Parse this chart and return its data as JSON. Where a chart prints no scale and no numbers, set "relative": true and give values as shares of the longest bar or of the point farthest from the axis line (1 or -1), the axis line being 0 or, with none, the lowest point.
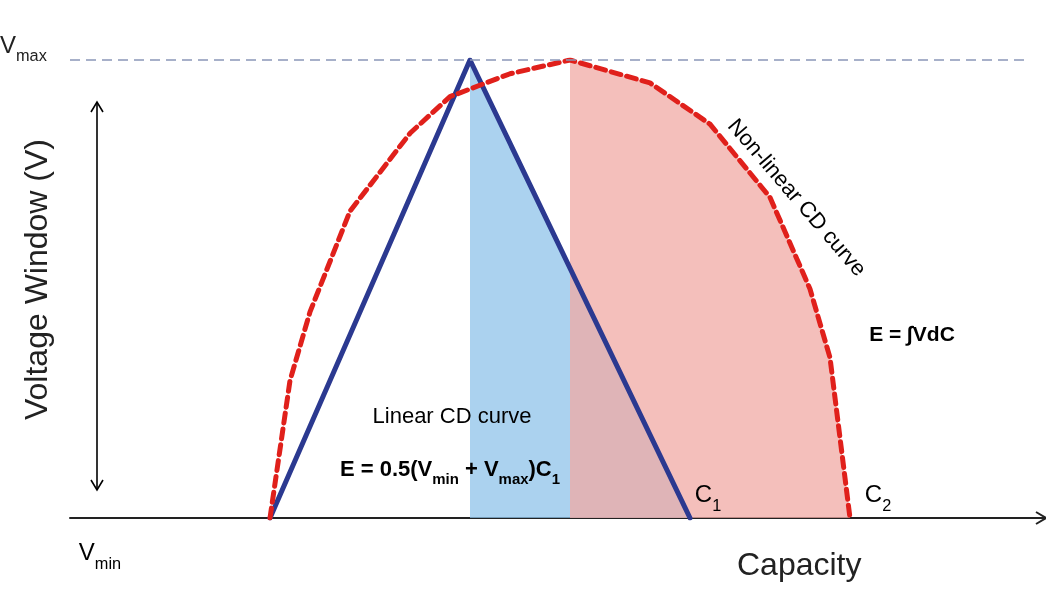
{
  "chart_data": {
    "type": "line",
    "relative": true,
    "xlabel": "Capacity",
    "ylabel": "Voltage Window (V)",
    "marker": "none",
    "categories": [
      null,
      null,
      null,
      null,
      null,
      null,
      null,
      null,
      null,
      null,
      null,
      null,
      null,
      null,
      null,
      null,
      null,
      null,
      null,
      null,
      null,
      null,
      null,
      null,
      null,
      null,
      null,
      null,
      null,
      null,
      null,
      null,
      null,
      null,
      null,
      null,
      null,
      null,
      null,
      null,
      null,
      null,
      null,
      null,
      null,
      null,
      null,
      null,
      null
    ],
    "series": [
      {
        "type": "area",
        "color": "#8fc3ea",
        "values": [
          null,
          null,
          null,
          null,
          null,
          null,
          null,
          null,
          null,
          null,
          null,
          null,
          null,
          null,
          null,
          null,
          null,
          null,
          null,
          null,
          1,
          null,
          null,
          null,
          null,
          null,
          null,
          null,
          null,
          null,
          null,
          0,
          null,
          null,
          null,
          null,
          null,
          null,
          null,
          null,
          null,
          null,
          null,
          null,
          null,
          null,
          null,
          null,
          null
        ]
      },
      {
        "type": "area",
        "color": "#f0aaa4",
        "values": [
          null,
          null,
          null,
          null,
          null,
          null,
          null,
          null,
          null,
          null,
          null,
          null,
          null,
          null,
          null,
          null,
          null,
          null,
          null,
          null,
          null,
          null,
          null,
          null,
          null,
          1,
          null,
          null,
          null,
          0.95,
          null,
          null,
          0.86,
          null,
          null,
          0.7,
          null,
          0.5,
          0.35,
          0,
          null,
          null,
          null,
          null,
          null,
          null,
          null,
          null,
          null
        ]
      },
      {
        "color": "#2b3990",
        "line_style": "solid",
        "values": [
          null,
          null,
          null,
          null,
          null,
          null,
          null,
          null,
          null,
          null,
          0,
          null,
          null,
          null,
          null,
          null,
          null,
          null,
          null,
          null,
          1,
          null,
          null,
          null,
          null,
          null,
          null,
          null,
          null,
          null,
          null,
          0,
          null,
          null,
          null,
          null,
          null,
          null,
          null,
          null,
          null,
          null,
          null,
          null,
          null,
          null,
          null,
          null,
          null
        ]
      },
      {
        "color": "#e0201b",
        "line_style": "dashed",
        "values": [
          null,
          null,
          null,
          null,
          null,
          null,
          null,
          null,
          null,
          null,
          0,
          0.3,
          0.45,
          null,
          0.67,
          null,
          null,
          0.84,
          null,
          0.92,
          null,
          null,
          0.97,
          null,
          null,
          1,
          null,
          null,
          null,
          0.95,
          null,
          null,
          0.86,
          null,
          null,
          0.7,
          null,
          0.5,
          0.35,
          0,
          null,
          null,
          null,
          null,
          null,
          null,
          null,
          null,
          null
        ]
      }
    ],
    "ref_lines": [
      {
        "axis": "y",
        "value": 1,
        "label": "V$_{max}$",
        "color": "#8a96b8",
        "line_style": "dashed"
      }
    ],
    "annotations": [
      "Linear CD curve",
      "E = 0.5(V$_{min}$ + V$_{max}$)C$_{1}$",
      "Non-linear CD curve",
      "E = ∫VdC",
      "V$_{min}$",
      "C$_{1}$",
      "C$_{2}$"
    ]
  }
}
